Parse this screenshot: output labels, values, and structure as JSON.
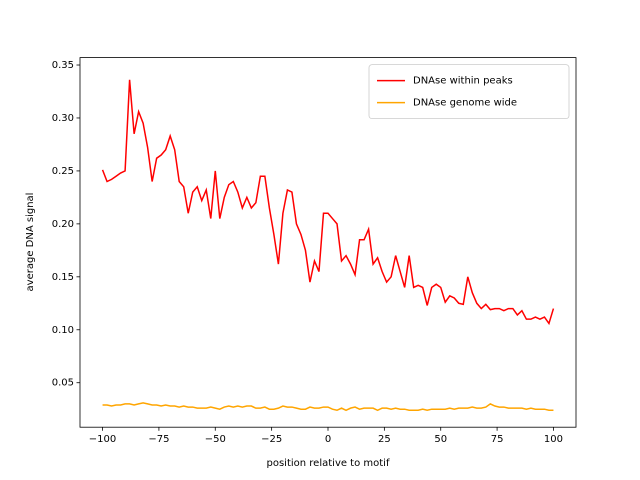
{
  "chart_data": {
    "type": "line",
    "xlabel": "position relative to motif",
    "ylabel": "average DNA signal",
    "x": [
      -100,
      -98,
      -96,
      -94,
      -92,
      -90,
      -88,
      -86,
      -84,
      -82,
      -80,
      -78,
      -76,
      -74,
      -72,
      -70,
      -68,
      -66,
      -64,
      -62,
      -60,
      -58,
      -56,
      -54,
      -52,
      -50,
      -48,
      -46,
      -44,
      -42,
      -40,
      -38,
      -36,
      -34,
      -32,
      -30,
      -28,
      -26,
      -24,
      -22,
      -20,
      -18,
      -16,
      -14,
      -12,
      -10,
      -8,
      -6,
      -4,
      -2,
      0,
      2,
      4,
      6,
      8,
      10,
      12,
      14,
      16,
      18,
      20,
      22,
      24,
      26,
      28,
      30,
      32,
      34,
      36,
      38,
      40,
      42,
      44,
      46,
      48,
      50,
      52,
      54,
      56,
      58,
      60,
      62,
      64,
      66,
      68,
      70,
      72,
      74,
      76,
      78,
      80,
      82,
      84,
      86,
      88,
      90,
      92,
      94,
      96,
      98,
      100
    ],
    "series": [
      {
        "name": "DNAse within peaks",
        "color": "#ff0000",
        "values": [
          0.251,
          0.24,
          0.242,
          0.245,
          0.248,
          0.25,
          0.336,
          0.285,
          0.306,
          0.295,
          0.272,
          0.24,
          0.262,
          0.265,
          0.27,
          0.283,
          0.27,
          0.24,
          0.235,
          0.21,
          0.23,
          0.235,
          0.222,
          0.232,
          0.205,
          0.25,
          0.205,
          0.225,
          0.237,
          0.24,
          0.23,
          0.215,
          0.225,
          0.215,
          0.22,
          0.245,
          0.245,
          0.215,
          0.19,
          0.162,
          0.21,
          0.232,
          0.23,
          0.2,
          0.19,
          0.175,
          0.145,
          0.165,
          0.155,
          0.21,
          0.21,
          0.205,
          0.2,
          0.165,
          0.17,
          0.162,
          0.152,
          0.185,
          0.185,
          0.195,
          0.162,
          0.168,
          0.155,
          0.145,
          0.15,
          0.17,
          0.155,
          0.14,
          0.17,
          0.14,
          0.142,
          0.14,
          0.123,
          0.14,
          0.143,
          0.14,
          0.126,
          0.132,
          0.13,
          0.125,
          0.124,
          0.15,
          0.135,
          0.125,
          0.12,
          0.124,
          0.119,
          0.12,
          0.12,
          0.118,
          0.12,
          0.12,
          0.114,
          0.118,
          0.11,
          0.11,
          0.112,
          0.11,
          0.112,
          0.106,
          0.12
        ]
      },
      {
        "name": "DNAse genome wide",
        "color": "#ffa500",
        "values": [
          0.029,
          0.029,
          0.028,
          0.029,
          0.029,
          0.03,
          0.03,
          0.029,
          0.03,
          0.031,
          0.03,
          0.029,
          0.029,
          0.028,
          0.029,
          0.028,
          0.028,
          0.027,
          0.028,
          0.027,
          0.027,
          0.026,
          0.026,
          0.026,
          0.027,
          0.026,
          0.025,
          0.027,
          0.028,
          0.027,
          0.028,
          0.027,
          0.028,
          0.028,
          0.026,
          0.026,
          0.027,
          0.025,
          0.025,
          0.026,
          0.028,
          0.027,
          0.027,
          0.026,
          0.025,
          0.025,
          0.027,
          0.026,
          0.026,
          0.027,
          0.027,
          0.025,
          0.024,
          0.026,
          0.024,
          0.026,
          0.027,
          0.025,
          0.026,
          0.026,
          0.026,
          0.024,
          0.026,
          0.026,
          0.025,
          0.026,
          0.025,
          0.025,
          0.024,
          0.024,
          0.024,
          0.025,
          0.024,
          0.025,
          0.025,
          0.025,
          0.025,
          0.026,
          0.025,
          0.026,
          0.026,
          0.026,
          0.027,
          0.026,
          0.026,
          0.027,
          0.03,
          0.028,
          0.027,
          0.027,
          0.026,
          0.026,
          0.026,
          0.026,
          0.025,
          0.026,
          0.025,
          0.025,
          0.025,
          0.024,
          0.024
        ]
      }
    ],
    "xlim": [
      -110,
      110
    ],
    "ylim": [
      0.008,
      0.357
    ],
    "xticks": [
      {
        "value": -100,
        "label": "−100"
      },
      {
        "value": -75,
        "label": "−75"
      },
      {
        "value": -50,
        "label": "−50"
      },
      {
        "value": -25,
        "label": "−25"
      },
      0,
      25,
      50,
      75,
      100
    ],
    "yticks": [
      0.05,
      {
        "value": 0.1,
        "label": "0.10"
      },
      0.15,
      {
        "value": 0.2,
        "label": "0.20"
      },
      0.25,
      {
        "value": 0.3,
        "label": "0.30"
      },
      0.35
    ],
    "legend": "upper right",
    "grid": false
  }
}
